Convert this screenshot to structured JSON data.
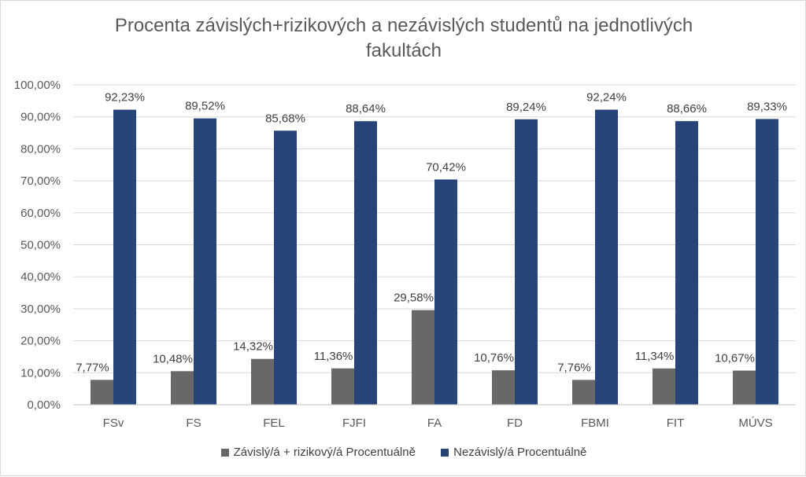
{
  "chart_data": {
    "type": "bar",
    "title_lines": [
      "Procenta závislých+rizikových a nezávislých studentů na jednotlivých",
      "fakultách"
    ],
    "categories": [
      "FSv",
      "FS",
      "FEL",
      "FJFI",
      "FA",
      "FD",
      "FBMI",
      "FIT",
      "MÚVS"
    ],
    "series": [
      {
        "name": "Závislý/á + rizikový/á Procentuálně",
        "color": "#686868",
        "values": [
          7.77,
          10.48,
          14.32,
          11.36,
          29.58,
          10.76,
          7.76,
          11.34,
          10.67
        ],
        "labels": [
          "7,77%",
          "10,48%",
          "14,32%",
          "11,36%",
          "29,58%",
          "10,76%",
          "7,76%",
          "11,34%",
          "10,67%"
        ]
      },
      {
        "name": "Nezávislý/á Procentuálně",
        "color": "#264478",
        "values": [
          92.23,
          89.52,
          85.68,
          88.64,
          70.42,
          89.24,
          92.24,
          88.66,
          89.33
        ],
        "labels": [
          "92,23%",
          "89,52%",
          "85,68%",
          "88,64%",
          "70,42%",
          "89,24%",
          "92,24%",
          "88,66%",
          "89,33%"
        ]
      }
    ],
    "yticks": [
      "0,00%",
      "10,00%",
      "20,00%",
      "30,00%",
      "40,00%",
      "50,00%",
      "60,00%",
      "70,00%",
      "80,00%",
      "90,00%",
      "100,00%"
    ],
    "ylim": [
      0,
      100
    ],
    "grid": true,
    "legend_position": "bottom"
  }
}
